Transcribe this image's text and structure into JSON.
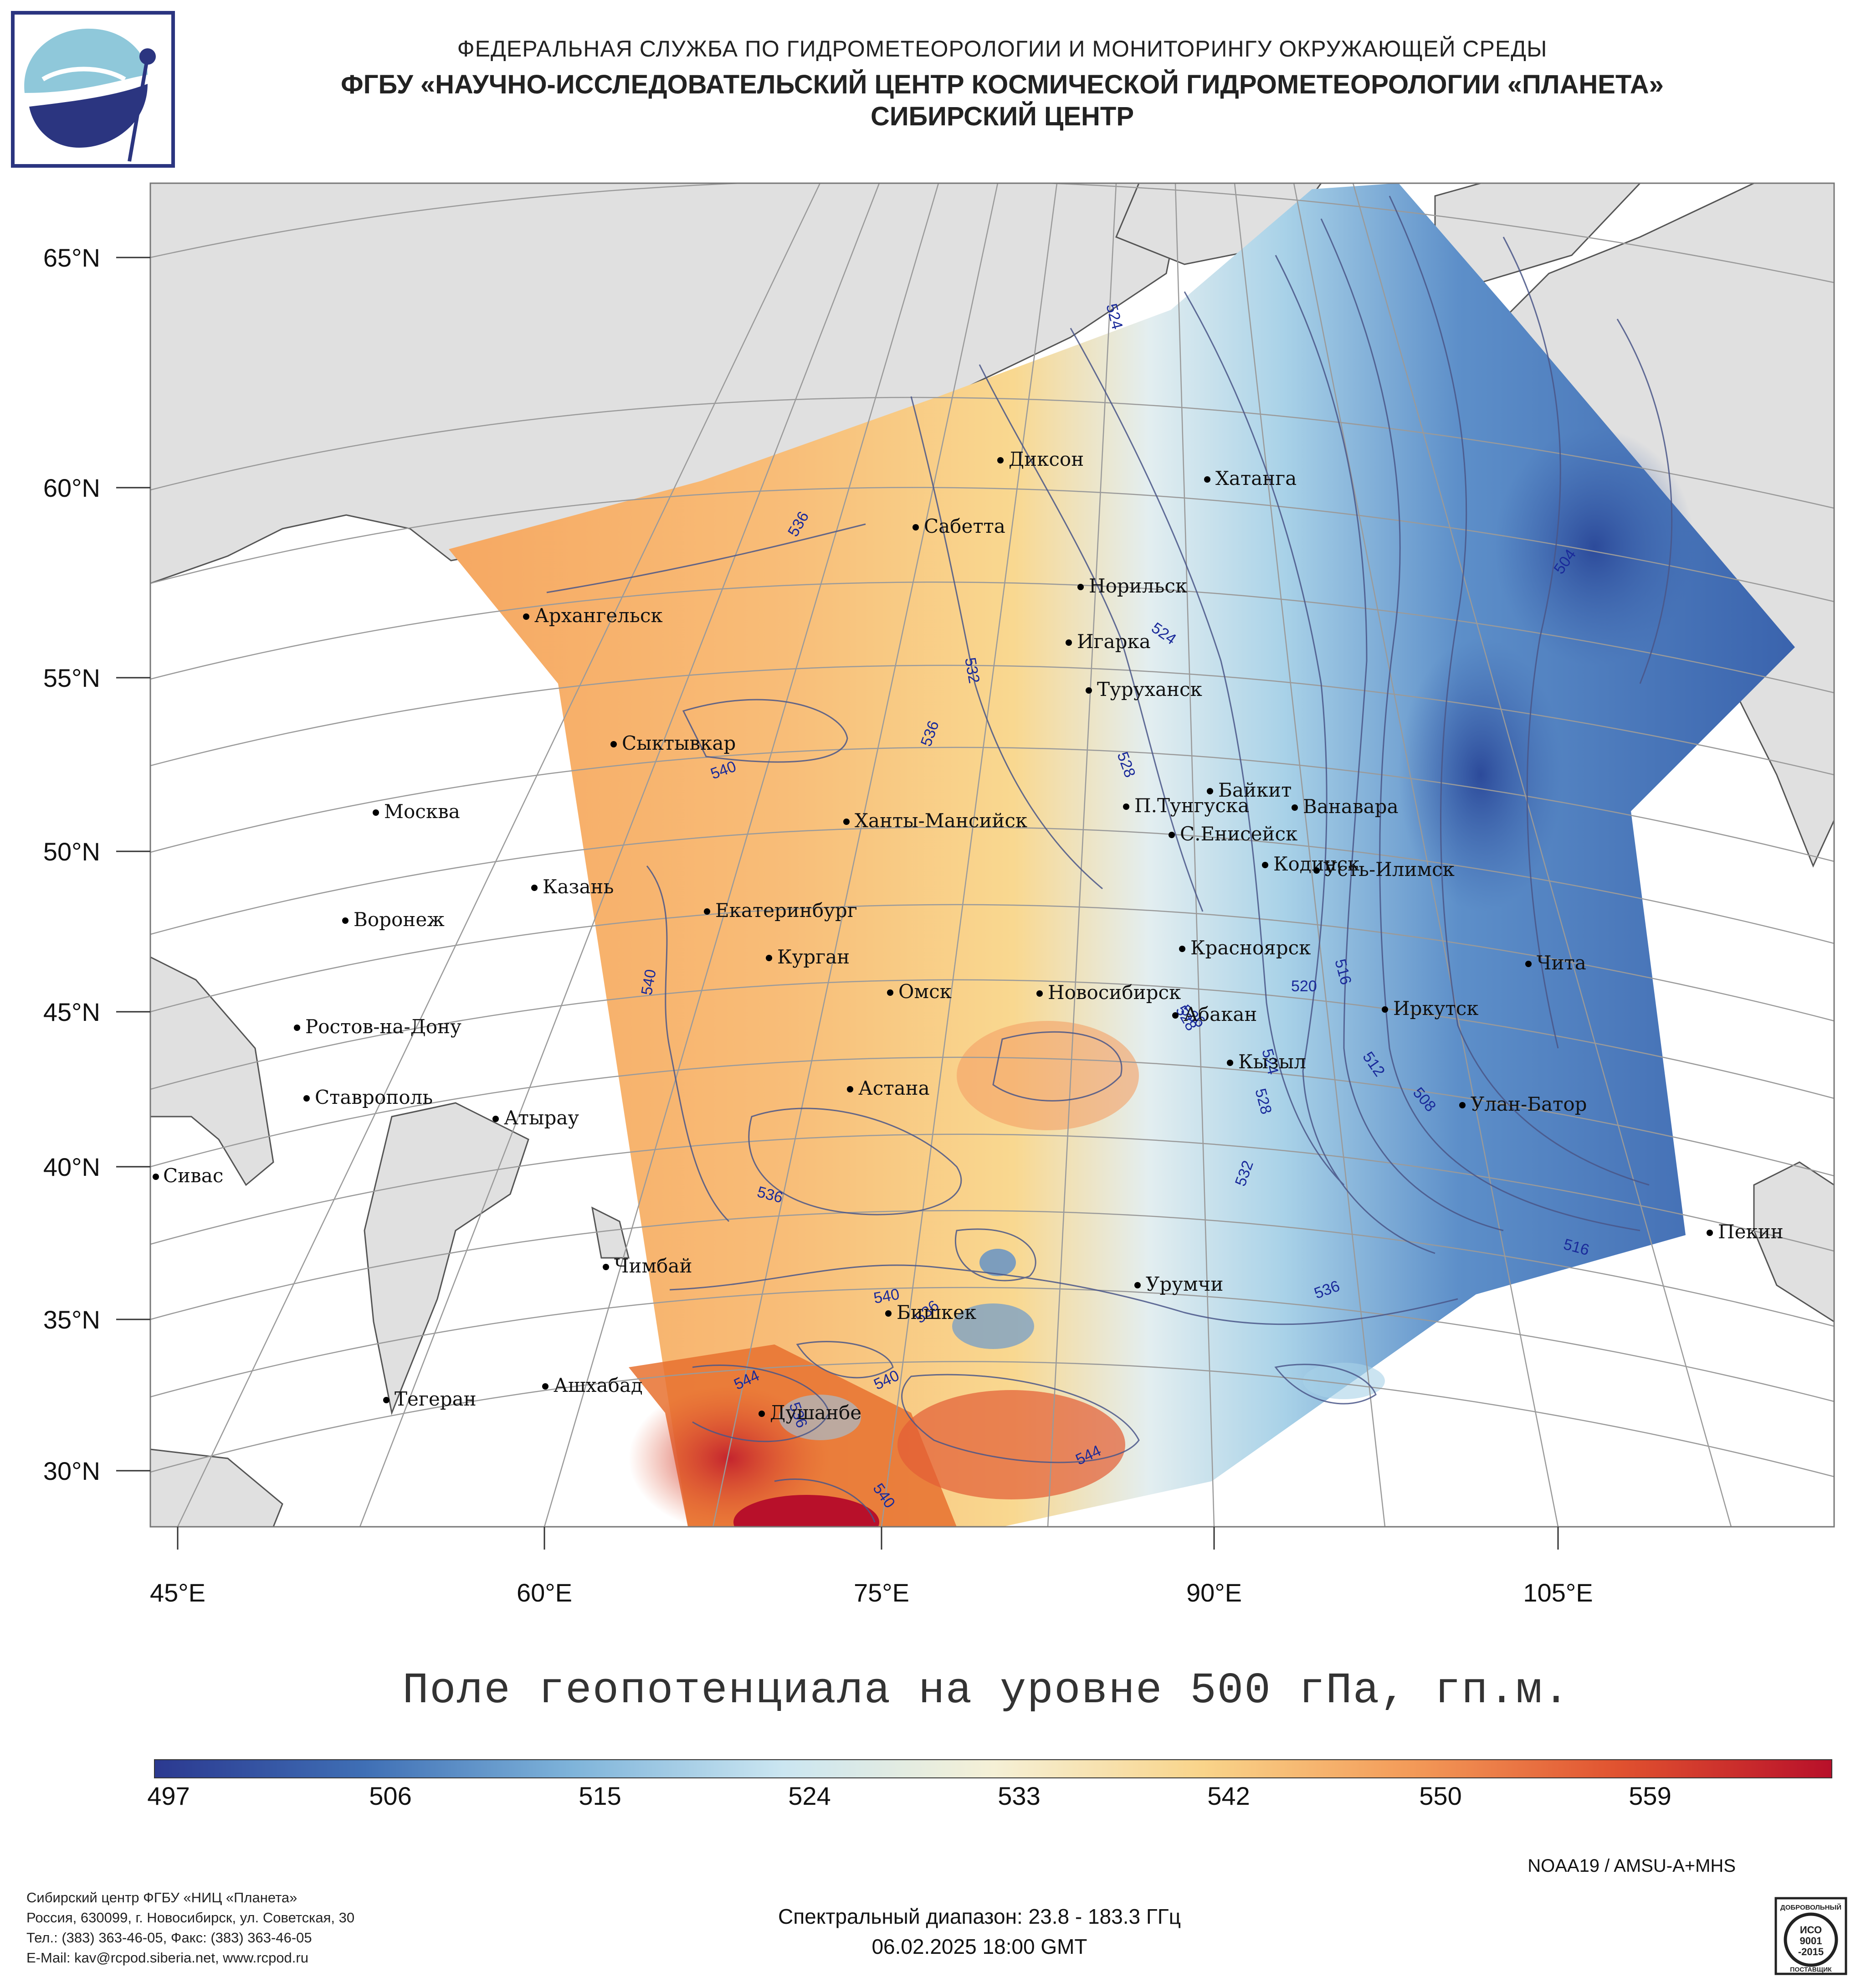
{
  "header": {
    "line1": "ФЕДЕРАЛЬНАЯ СЛУЖБА ПО ГИДРОМЕТЕОРОЛОГИИ И МОНИТОРИНГУ ОКРУЖАЮЩЕЙ СРЕДЫ",
    "line2": "ФГБУ «НАУЧНО-ИССЛЕДОВАТЕЛЬСКИЙ ЦЕНТР КОСМИЧЕСКОЙ ГИДРОМЕТЕОРОЛОГИИ «ПЛАНЕТА»",
    "line3": "СИБИРСКИЙ ЦЕНТР"
  },
  "map": {
    "lat_labels": [
      "65°N",
      "60°N",
      "55°N",
      "50°N",
      "45°N",
      "40°N",
      "35°N",
      "30°N"
    ],
    "lon_labels": [
      "45°E",
      "60°E",
      "75°E",
      "90°E",
      "105°E"
    ],
    "cities": [
      "Диксон",
      "Хатанга",
      "Сабетта",
      "Архангельск",
      "Норильск",
      "Игарка",
      "Туруханск",
      "Сыктывкар",
      "Байкит",
      "П.Тунгуска",
      "Ванавара",
      "Москва",
      "Ханты-Мансийск",
      "С.Енисейск",
      "Кодинск",
      "Усть-Илимск",
      "Казань",
      "Екатеринбург",
      "Воронеж",
      "Курган",
      "Красноярск",
      "Чита",
      "Омск",
      "Новосибирск",
      "Иркутск",
      "Абакан",
      "Ростов-на-Дону",
      "Кызыл",
      "Астана",
      "Ставрополь",
      "Улан-Батор",
      "Атырау",
      "Сивас",
      "Пекин",
      "Чимбай",
      "Урумчи",
      "Бишкек",
      "Ашхабад",
      "Тегеран",
      "Душанбе"
    ],
    "contour_labels": [
      "536",
      "524",
      "532",
      "536",
      "540",
      "524",
      "528",
      "504",
      "540",
      "520",
      "516",
      "512",
      "508",
      "528",
      "524",
      "528",
      "532",
      "536",
      "516",
      "536",
      "540",
      "536",
      "544",
      "540",
      "544",
      "540",
      "536",
      "536"
    ]
  },
  "map_title": "Поле геопотенциала на уровне 500 гПа, гп.м.",
  "colorbar": {
    "labels": [
      "497",
      "506",
      "515",
      "524",
      "533",
      "542",
      "550",
      "559"
    ],
    "colors": [
      "#2b3990",
      "#3f6fb5",
      "#7fb4da",
      "#cbe6f1",
      "#f5f0d6",
      "#f9d48a",
      "#f39a58",
      "#e0512f",
      "#b8102a"
    ]
  },
  "satellite": "NOAA19 / AMSU-A+MHS",
  "footer": {
    "org_line1": "Сибирский центр ФГБУ «НИЦ «Планета»",
    "org_line2": "Россия, 630099, г. Новосибирск, ул. Советская, 30",
    "org_line3": "Тел.: (383) 363-46-05, Факс: (383) 363-46-05",
    "org_line4": "E-Mail: kav@rcpod.siberia.net, www.rcpod.ru",
    "spectral": "Спектральный диапазон: 23.8 - 183.3 ГГц",
    "datetime": "06.02.2025 18:00 GMT"
  },
  "iso_badge": {
    "top": "ДОБРОВОЛЬНЫЙ",
    "line1": "ИСО",
    "line2": "9001",
    "line3": "-2015",
    "bottom": "ПОСТАВЩИК"
  }
}
